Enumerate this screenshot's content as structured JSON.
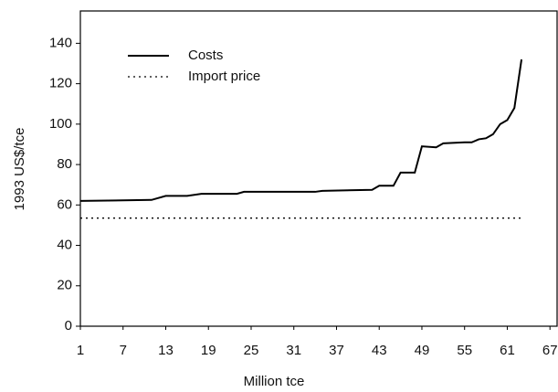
{
  "chart_data": {
    "type": "line",
    "xlabel": "Million tce",
    "ylabel": "1993 US$/tce",
    "xlim": [
      1,
      68
    ],
    "xticks": [
      1,
      7,
      13,
      19,
      25,
      31,
      37,
      43,
      49,
      55,
      61,
      67
    ],
    "ylim": [
      0,
      156
    ],
    "yticks": [
      0,
      20,
      40,
      60,
      80,
      100,
      120,
      140
    ],
    "legend": "upper left",
    "series": [
      {
        "name": "Costs",
        "color": "#000000",
        "style": "solid",
        "x": [
          1,
          11,
          13,
          16,
          18,
          23,
          24,
          34,
          35,
          42,
          43,
          45,
          46,
          48,
          49,
          51,
          52,
          55,
          56,
          57,
          58,
          59,
          60,
          61,
          62,
          63
        ],
        "values": [
          62,
          62.5,
          64.5,
          64.5,
          65.5,
          65.5,
          66.5,
          66.5,
          67,
          67.5,
          69.5,
          69.5,
          76,
          76,
          89,
          88.5,
          90.5,
          91,
          91,
          92.5,
          93,
          95,
          100,
          102,
          108,
          132
        ]
      },
      {
        "name": "Import price",
        "color": "#000000",
        "style": "dotted",
        "x": [
          1,
          63
        ],
        "values": [
          53.5,
          53.5
        ]
      }
    ]
  }
}
